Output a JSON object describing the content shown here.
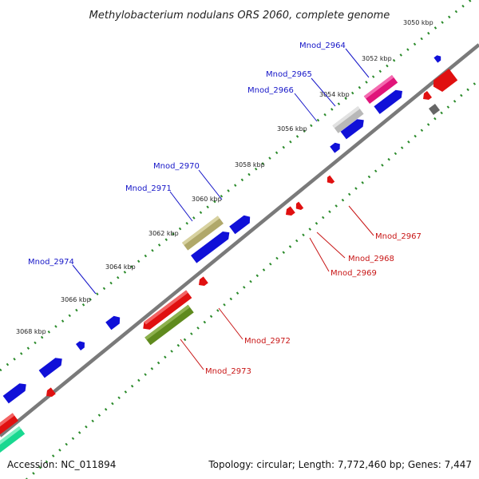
{
  "title": "Methylobacterium nodulans ORS 2060, complete genome",
  "footer": {
    "accession": "Accession: NC_011894",
    "summary": "Topology: circular; Length: 7,772,460 bp; Genes: 7,447"
  },
  "ticks": [
    "3050 kbp",
    "3052 kbp",
    "3054 kbp",
    "3056 kbp",
    "3058 kbp",
    "3060 kbp",
    "3062 kbp",
    "3064 kbp",
    "3066 kbp",
    "3068 kbp"
  ],
  "genes_plus": [
    "Mnod_2964",
    "Mnod_2965",
    "Mnod_2966",
    "Mnod_2970",
    "Mnod_2971",
    "Mnod_2974"
  ],
  "genes_minus": [
    "Mnod_2967",
    "Mnod_2968",
    "Mnod_2969",
    "Mnod_2972",
    "Mnod_2973"
  ],
  "colors": {
    "backbone": "#7a7a7a",
    "plus": "#1010d8",
    "minus": "#e01010",
    "pink": "#e0147a",
    "silver": "#b8b8b8",
    "khaki": "#b0a86a",
    "olive": "#5f8a1e",
    "teal": "#18d890",
    "grey": "#666666",
    "dots": "#2a8a2a",
    "label_blue": "#1515c8",
    "label_red": "#c81515"
  }
}
